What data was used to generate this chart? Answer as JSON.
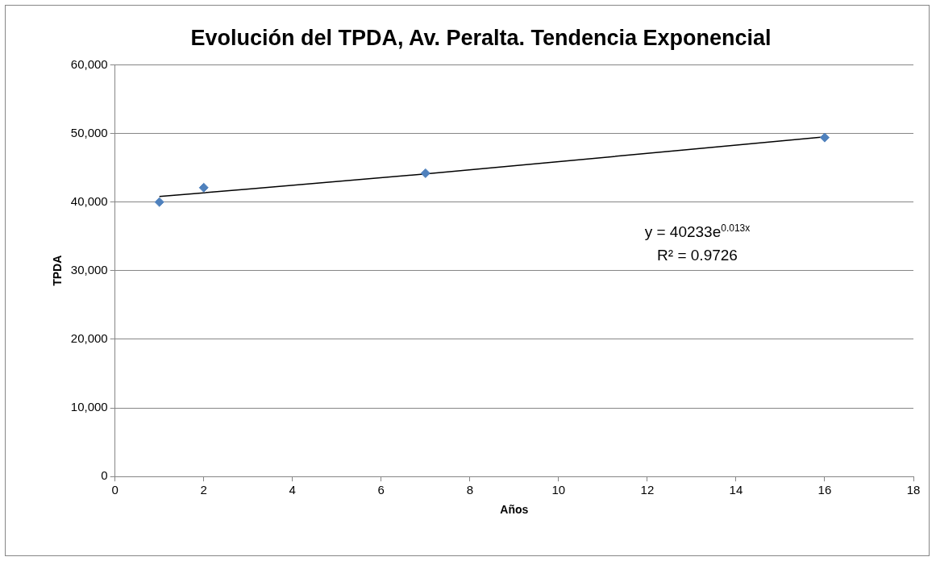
{
  "chart_data": {
    "type": "scatter",
    "title": "Evolución del TPDA, Av. Peralta. Tendencia Exponencial",
    "xlabel": "Años",
    "ylabel": "TPDA",
    "series": [
      {
        "color": "#4f81bd",
        "marker": "diamond",
        "x": [
          1,
          2,
          7,
          16
        ],
        "values": [
          40000,
          42100,
          44200,
          49400
        ]
      },
      {
        "type": "line",
        "color": "#000000",
        "marker": "none",
        "x": [
          1,
          7,
          16
        ],
        "values": [
          40800,
          44100,
          49500
        ]
      }
    ],
    "xlim": [
      0,
      18
    ],
    "xticks": [
      0,
      2,
      4,
      6,
      8,
      10,
      12,
      14,
      16,
      18
    ],
    "ylim": [
      0,
      60000
    ],
    "yticks": [
      {
        "value": 0,
        "label": "0"
      },
      {
        "value": 10000,
        "label": "10,000"
      },
      {
        "value": 20000,
        "label": "20,000"
      },
      {
        "value": 30000,
        "label": "30,000"
      },
      {
        "value": 40000,
        "label": "40,000"
      },
      {
        "value": 50000,
        "label": "50,000"
      },
      {
        "value": 60000,
        "label": "60,000"
      }
    ],
    "grid": "y",
    "legend": false,
    "annotations": [
      "y = 40233e$^{0.013x}$",
      "R² = 0.9726"
    ]
  }
}
